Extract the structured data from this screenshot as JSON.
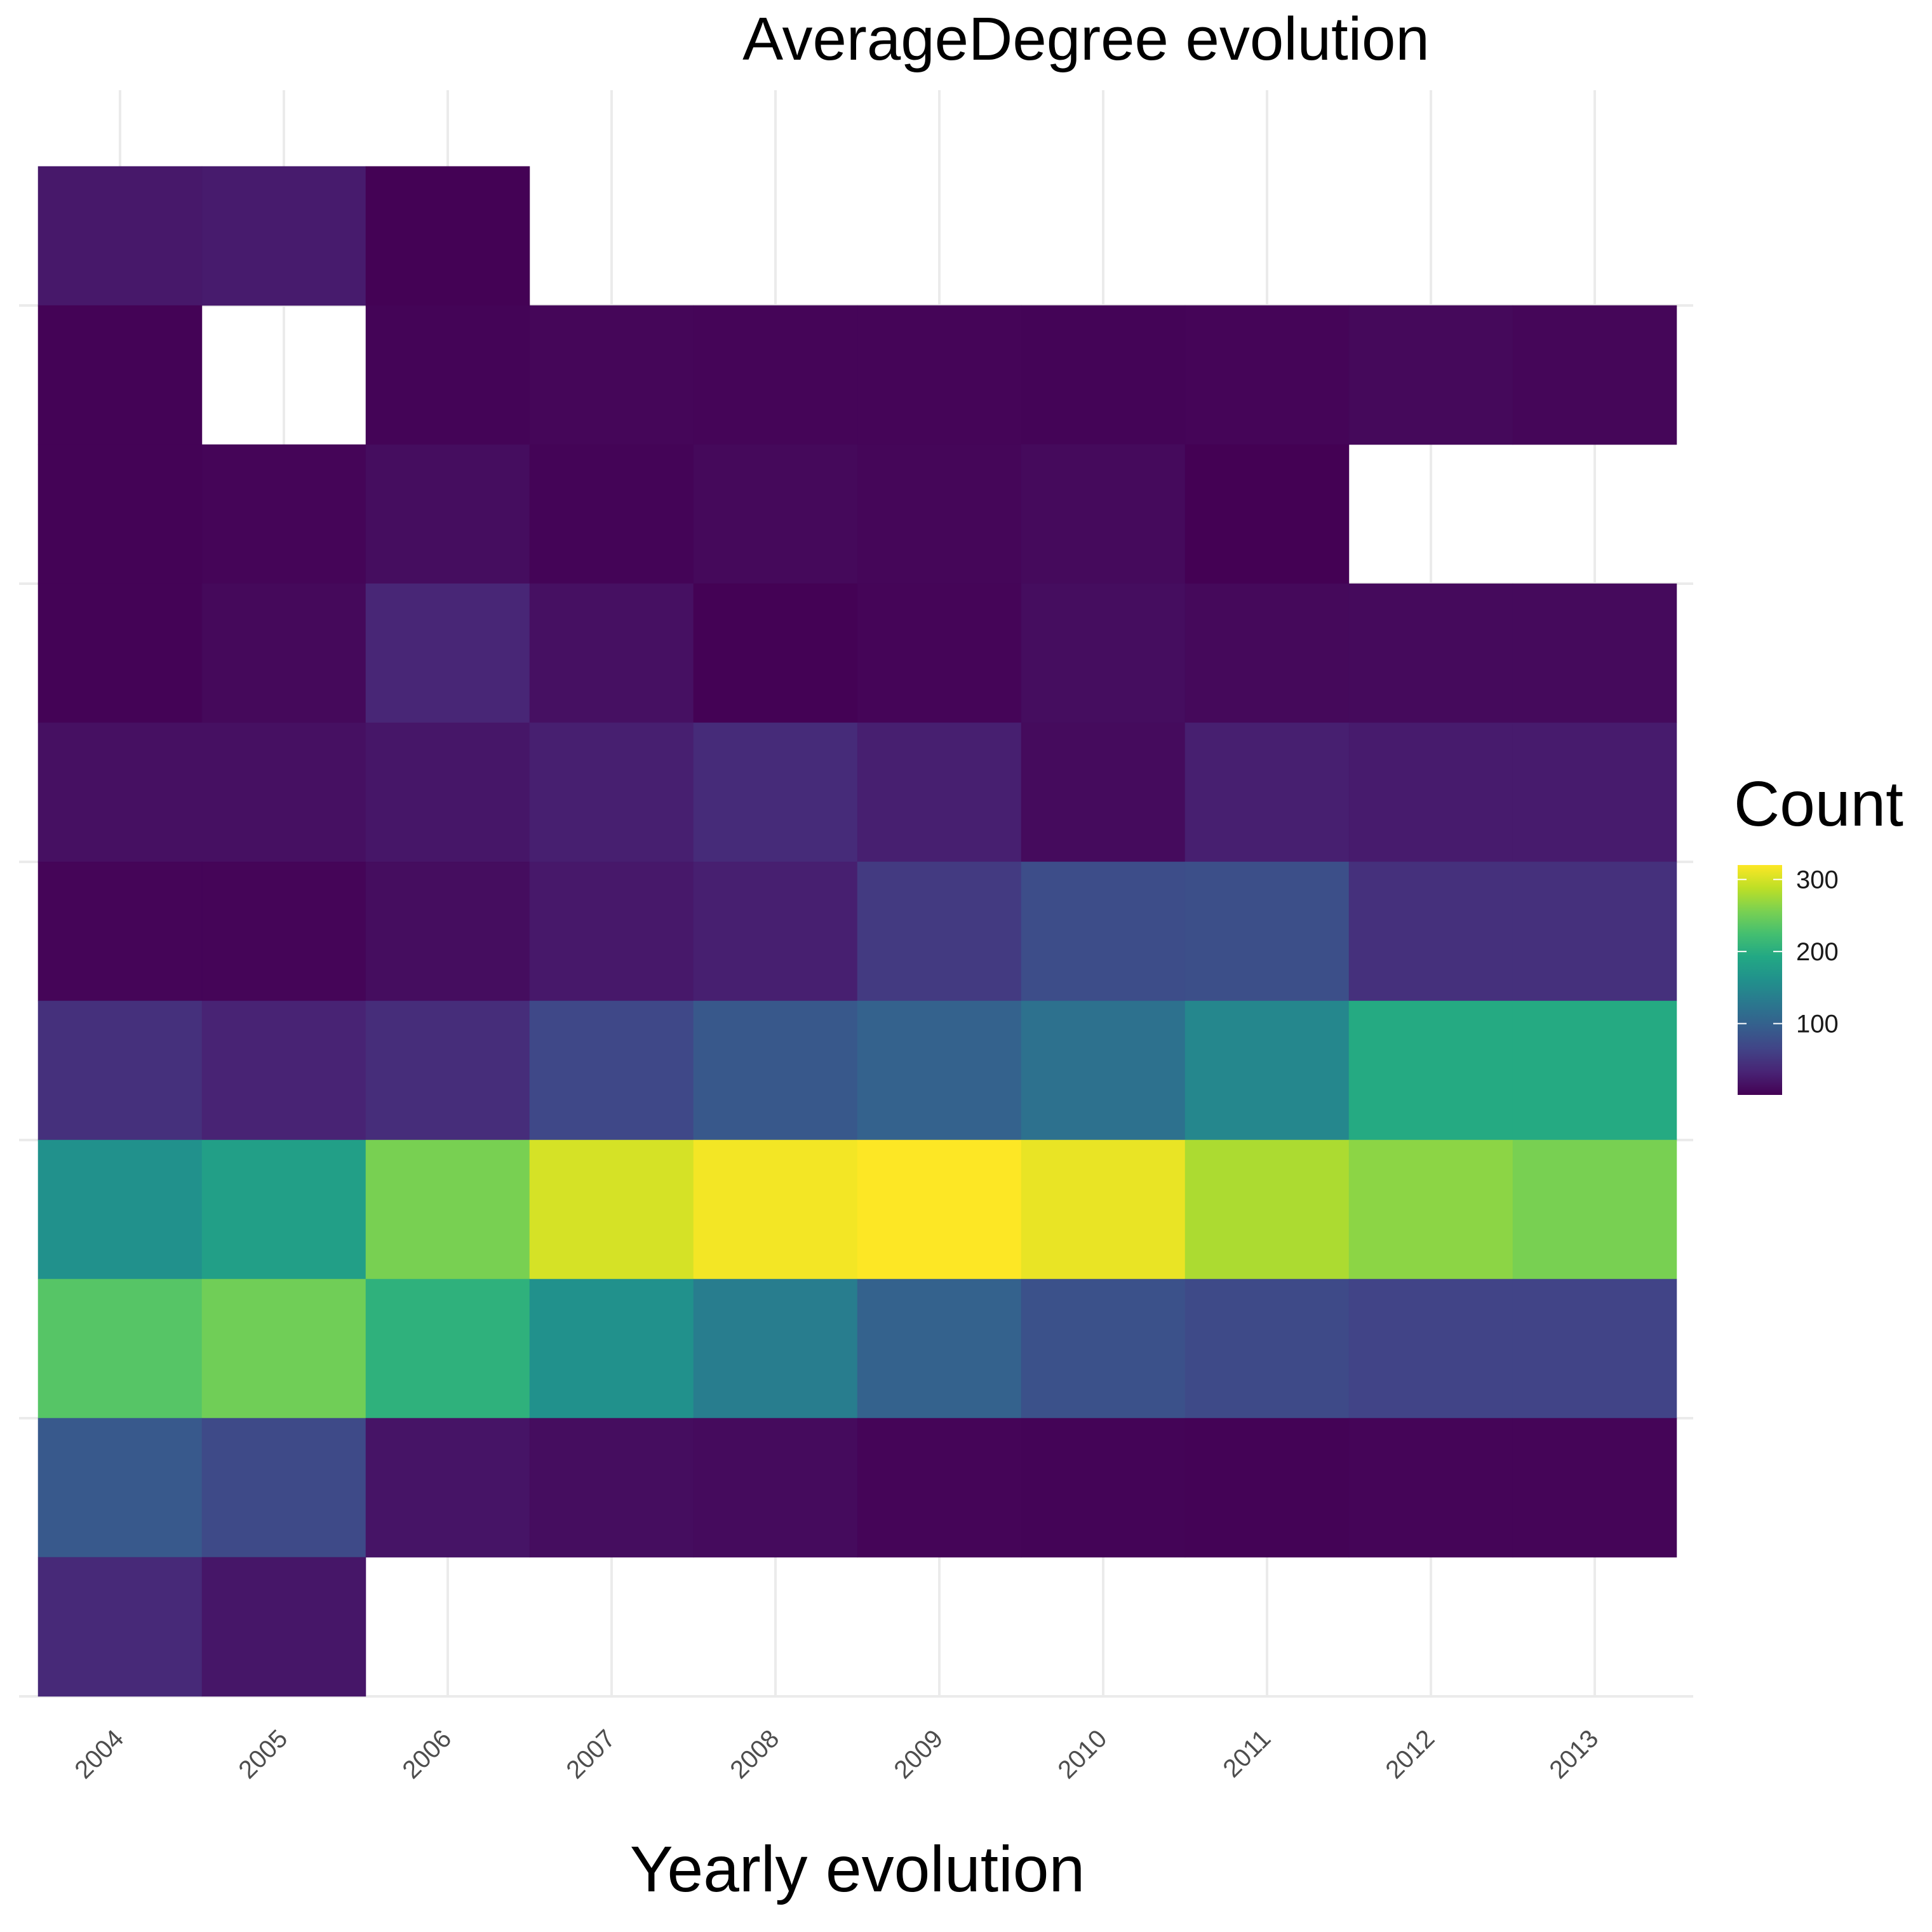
{
  "chart_data": {
    "type": "heatmap",
    "title": "AverageDegree evolution",
    "xlabel": "Yearly evolution",
    "ylabel": "",
    "x_categories": [
      "2004",
      "2005",
      "2006",
      "2007",
      "2008",
      "2009",
      "2010",
      "2011",
      "2012",
      "2013"
    ],
    "y_tick_labels": [],
    "grid": true,
    "colormap": "viridis",
    "legend": {
      "title": "Count",
      "position": "right",
      "ticks": [
        100,
        200,
        300
      ],
      "min": 1,
      "max": 320
    },
    "rows_top_to_bottom": [
      [
        22,
        25,
        2,
        null,
        null,
        null,
        null,
        null,
        null,
        null
      ],
      [
        3,
        null,
        4,
        6,
        5,
        5,
        4,
        5,
        8,
        6
      ],
      [
        3,
        5,
        12,
        4,
        8,
        6,
        9,
        1,
        null,
        null
      ],
      [
        3,
        8,
        35,
        15,
        2,
        5,
        12,
        8,
        9,
        9
      ],
      [
        15,
        15,
        20,
        28,
        40,
        28,
        10,
        28,
        25,
        25
      ],
      [
        5,
        5,
        12,
        22,
        28,
        55,
        75,
        78,
        45,
        45
      ],
      [
        45,
        32,
        42,
        70,
        88,
        100,
        120,
        148,
        195,
        195
      ],
      [
        160,
        180,
        255,
        300,
        315,
        325,
        310,
        280,
        265,
        255
      ],
      [
        235,
        250,
        205,
        160,
        135,
        100,
        80,
        72,
        65,
        65
      ],
      [
        90,
        72,
        18,
        12,
        10,
        5,
        4,
        3,
        5,
        5
      ],
      [
        38,
        20,
        null,
        null,
        null,
        null,
        null,
        null,
        null,
        null
      ]
    ]
  }
}
